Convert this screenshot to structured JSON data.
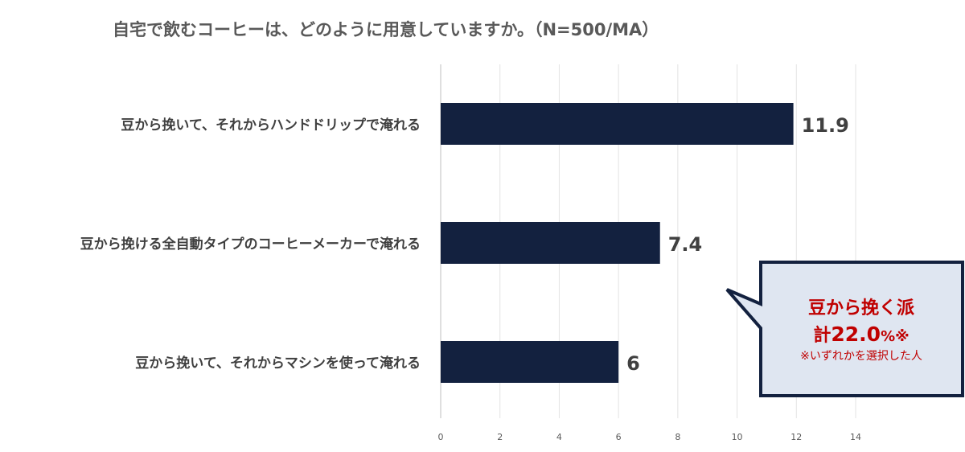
{
  "chart_data": {
    "type": "bar",
    "orientation": "horizontal",
    "title": "自宅で飲むコーヒーは、どのように用意していますか。（N=500/MA）",
    "categories": [
      "豆から挽いて、それからハンドドリップで淹れる",
      "豆から挽ける全自動タイプのコーヒーメーカーで淹れる",
      "豆から挽いて、それからマシンを使って淹れる"
    ],
    "values": [
      11.9,
      7.4,
      6
    ],
    "value_labels": [
      "11.9",
      "7.4",
      "6"
    ],
    "xlim": [
      0,
      14
    ],
    "xticks": [
      0,
      2,
      4,
      6,
      8,
      10,
      12,
      14
    ],
    "xtick_labels": [
      "0",
      "2",
      "4",
      "6",
      "8",
      "10",
      "12",
      "14"
    ],
    "grid": "vertical",
    "legend": "none",
    "bar_color": "#13213f",
    "annotation": {
      "line1": "豆から挽く派",
      "line2_prefix": "計",
      "line2_value": "22.0",
      "line2_suffix": "%※",
      "line3": "※いずれかを選択した人",
      "text_color": "#c00000",
      "fill": "#dfe6f1",
      "border": "#13213f"
    }
  }
}
